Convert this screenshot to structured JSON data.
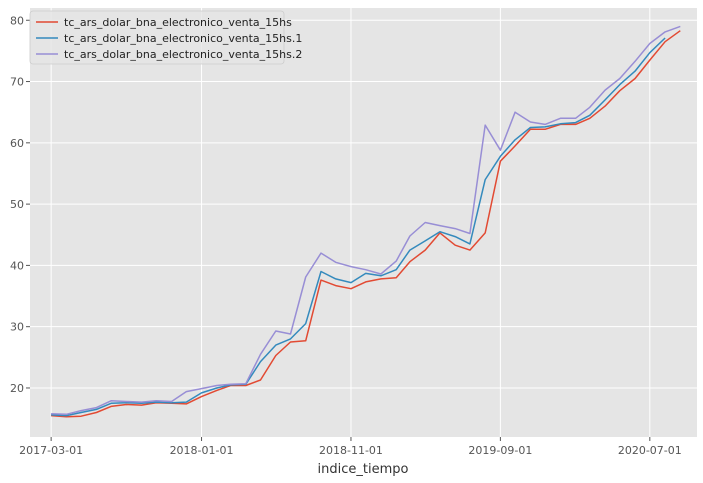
{
  "chart_data": {
    "type": "line",
    "xlabel": "indice_tiempo",
    "ylabel": "",
    "xlim": [
      "2017-01-17",
      "2020-10-05"
    ],
    "ylim": [
      12,
      82
    ],
    "x_ticks": [
      "2017-03-01",
      "2018-01-01",
      "2018-11-01",
      "2019-09-01",
      "2020-07-01"
    ],
    "y_ticks": [
      20,
      30,
      40,
      50,
      60,
      70,
      80
    ],
    "grid": true,
    "legend_position": "top-left",
    "x": [
      "2017-03-01",
      "2017-04-01",
      "2017-05-01",
      "2017-06-01",
      "2017-07-01",
      "2017-08-01",
      "2017-09-01",
      "2017-10-01",
      "2017-11-01",
      "2017-12-01",
      "2018-01-01",
      "2018-02-01",
      "2018-03-01",
      "2018-04-01",
      "2018-05-01",
      "2018-06-01",
      "2018-07-01",
      "2018-08-01",
      "2018-09-01",
      "2018-10-01",
      "2018-11-01",
      "2018-12-01",
      "2019-01-01",
      "2019-02-01",
      "2019-03-01",
      "2019-04-01",
      "2019-05-01",
      "2019-06-01",
      "2019-07-01",
      "2019-08-01",
      "2019-09-01",
      "2019-10-01",
      "2019-11-01",
      "2019-12-01",
      "2020-01-01",
      "2020-02-01",
      "2020-03-01",
      "2020-04-01",
      "2020-05-01",
      "2020-06-01",
      "2020-07-01",
      "2020-08-01",
      "2020-09-01"
    ],
    "series": [
      {
        "name": "tc_ars_dolar_bna_electronico_venta_15hs",
        "color": "#E24A33",
        "values": [
          15.5,
          15.3,
          15.4,
          16.0,
          17.0,
          17.3,
          17.2,
          17.6,
          17.5,
          17.4,
          18.6,
          19.6,
          20.4,
          20.4,
          21.3,
          25.3,
          27.5,
          27.7,
          37.6,
          36.7,
          36.2,
          37.3,
          37.8,
          38.0,
          40.6,
          42.5,
          45.3,
          43.3,
          42.5,
          45.3,
          57.0,
          59.5,
          62.2,
          62.2,
          63.0,
          63.0,
          64.0,
          66.0,
          68.5,
          70.5,
          73.5,
          76.5,
          78.3
        ]
      },
      {
        "name": "tc_ars_dolar_bna_electronico_venta_15hs.1",
        "color": "#348ABD",
        "values": [
          15.6,
          15.5,
          16.0,
          16.5,
          17.5,
          17.6,
          17.5,
          17.7,
          17.6,
          17.7,
          19.2,
          20.0,
          20.5,
          20.6,
          24.3,
          27.0,
          28.0,
          30.5,
          39.0,
          37.8,
          37.2,
          38.7,
          38.3,
          39.3,
          42.5,
          44.0,
          45.5,
          44.7,
          43.5,
          54.0,
          57.8,
          60.5,
          62.5,
          62.6,
          63.1,
          63.3,
          64.5,
          67.0,
          69.5,
          71.7,
          74.7,
          77.1,
          null
        ]
      },
      {
        "name": "tc_ars_dolar_bna_electronico_venta_15hs.2",
        "color": "#988ED5",
        "values": [
          15.8,
          15.7,
          16.3,
          16.8,
          17.9,
          17.8,
          17.7,
          17.9,
          17.8,
          19.4,
          19.9,
          20.4,
          20.6,
          20.7,
          25.5,
          29.3,
          28.8,
          38.1,
          42.0,
          40.5,
          39.8,
          39.3,
          38.6,
          40.7,
          44.8,
          47.0,
          46.5,
          46.0,
          45.2,
          62.9,
          58.8,
          65.0,
          63.4,
          63.0,
          64.0,
          64.0,
          65.8,
          68.6,
          70.5,
          73.3,
          76.2,
          78.1,
          79.0
        ]
      }
    ]
  }
}
